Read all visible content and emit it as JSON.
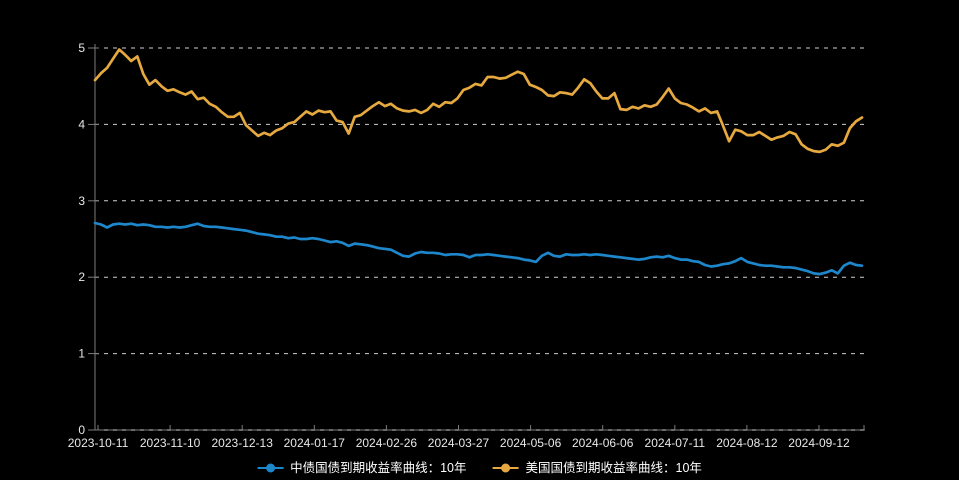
{
  "page": {
    "background": "#000000"
  },
  "chart_data": {
    "type": "line",
    "title": "",
    "xlabel": "",
    "ylabel": "",
    "ylim": [
      0,
      5
    ],
    "y_ticks": [
      0,
      1,
      2,
      3,
      4,
      5
    ],
    "grid": "horizontal dashed gridlines on",
    "legend_position": "bottom-center",
    "x_tick_labels": [
      "2023-10-11",
      "2023-11-10",
      "2023-12-13",
      "2024-01-17",
      "2024-02-26",
      "2024-03-27",
      "2024-05-06",
      "2024-06-06",
      "2024-07-11",
      "2024-08-12",
      "2024-09-12"
    ],
    "series": [
      {
        "name": "中债国债到期收益率曲线：10年",
        "color": "#1e86ca",
        "values": [
          2.71,
          2.69,
          2.65,
          2.69,
          2.7,
          2.69,
          2.7,
          2.68,
          2.69,
          2.68,
          2.66,
          2.66,
          2.65,
          2.66,
          2.65,
          2.66,
          2.68,
          2.7,
          2.67,
          2.66,
          2.66,
          2.65,
          2.64,
          2.63,
          2.62,
          2.61,
          2.59,
          2.57,
          2.56,
          2.55,
          2.53,
          2.53,
          2.51,
          2.52,
          2.5,
          2.5,
          2.51,
          2.5,
          2.48,
          2.46,
          2.47,
          2.45,
          2.41,
          2.44,
          2.43,
          2.42,
          2.4,
          2.38,
          2.37,
          2.36,
          2.32,
          2.28,
          2.27,
          2.31,
          2.33,
          2.32,
          2.32,
          2.31,
          2.29,
          2.3,
          2.3,
          2.29,
          2.26,
          2.29,
          2.29,
          2.3,
          2.29,
          2.28,
          2.27,
          2.26,
          2.25,
          2.23,
          2.22,
          2.2,
          2.28,
          2.32,
          2.28,
          2.27,
          2.3,
          2.29,
          2.29,
          2.3,
          2.29,
          2.3,
          2.29,
          2.28,
          2.27,
          2.26,
          2.25,
          2.24,
          2.23,
          2.24,
          2.26,
          2.27,
          2.26,
          2.28,
          2.25,
          2.23,
          2.23,
          2.21,
          2.2,
          2.16,
          2.14,
          2.15,
          2.17,
          2.18,
          2.21,
          2.25,
          2.2,
          2.18,
          2.16,
          2.15,
          2.15,
          2.14,
          2.13,
          2.13,
          2.12,
          2.1,
          2.08,
          2.05,
          2.04,
          2.06,
          2.09,
          2.05,
          2.15,
          2.19,
          2.16,
          2.15
        ]
      },
      {
        "name": "美国国债到期收益率曲线：10年",
        "color": "#e6a93f",
        "values": [
          4.58,
          4.67,
          4.74,
          4.86,
          4.98,
          4.91,
          4.83,
          4.89,
          4.66,
          4.52,
          4.58,
          4.5,
          4.44,
          4.46,
          4.42,
          4.39,
          4.43,
          4.33,
          4.35,
          4.27,
          4.23,
          4.16,
          4.1,
          4.1,
          4.15,
          3.99,
          3.92,
          3.85,
          3.89,
          3.86,
          3.92,
          3.95,
          4.01,
          4.03,
          4.1,
          4.17,
          4.13,
          4.18,
          4.16,
          4.17,
          4.05,
          4.03,
          3.88,
          4.1,
          4.12,
          4.18,
          4.24,
          4.29,
          4.24,
          4.27,
          4.21,
          4.18,
          4.17,
          4.19,
          4.15,
          4.19,
          4.27,
          4.23,
          4.29,
          4.28,
          4.34,
          4.45,
          4.48,
          4.53,
          4.51,
          4.62,
          4.62,
          4.6,
          4.61,
          4.65,
          4.69,
          4.66,
          4.52,
          4.49,
          4.45,
          4.38,
          4.37,
          4.42,
          4.41,
          4.39,
          4.48,
          4.59,
          4.54,
          4.43,
          4.34,
          4.34,
          4.41,
          4.2,
          4.19,
          4.23,
          4.21,
          4.25,
          4.23,
          4.26,
          4.36,
          4.47,
          4.34,
          4.28,
          4.26,
          4.22,
          4.17,
          4.21,
          4.15,
          4.17,
          3.98,
          3.78,
          3.93,
          3.91,
          3.86,
          3.86,
          3.9,
          3.85,
          3.8,
          3.83,
          3.85,
          3.9,
          3.87,
          3.74,
          3.68,
          3.65,
          3.64,
          3.67,
          3.74,
          3.72,
          3.76,
          3.95,
          4.04,
          4.09
        ]
      }
    ],
    "axis_colors": {
      "axis_line": "#7c7c7c",
      "gridline": "#cfcfcf",
      "tick_label": "#e8e8e8"
    }
  }
}
